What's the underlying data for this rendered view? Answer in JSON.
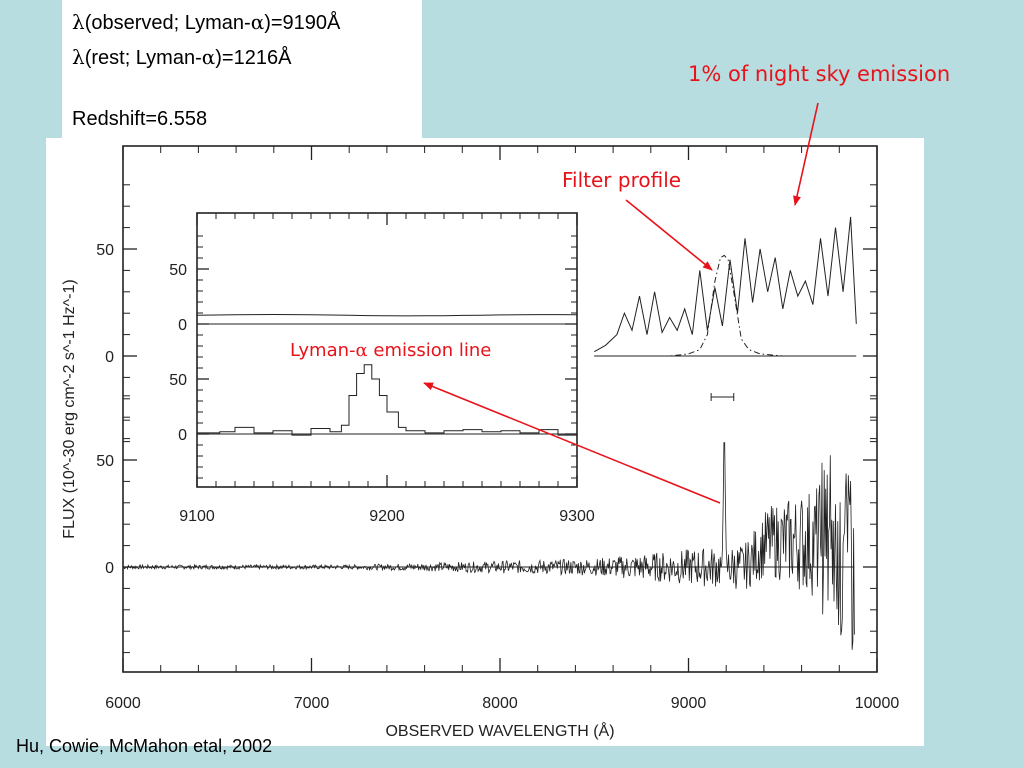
{
  "info": {
    "line1_pre": "(observed; Lyman-",
    "line1_post": ")=9190Å",
    "line2_pre": "(rest; Lyman-",
    "line2_post": ")=1216Å",
    "redshift": "Redshift=6.558",
    "lambda_symbol": "λ",
    "alpha_symbol": "α"
  },
  "annotations": {
    "night_sky": "1% of night sky emission",
    "filter": "Filter profile",
    "lyman_pre": "Lyman-",
    "lyman_post": " emission line"
  },
  "credit": "Hu, Cowie, McMahon  etal, 2002",
  "colors": {
    "background": "#b7dde1",
    "panel": "#ffffff",
    "annotation": "#e8131a",
    "ink": "#222222"
  },
  "chart_data": [
    {
      "type": "line",
      "xlabel": "OBSERVED WAVELENGTH (Å)",
      "ylabel": "FLUX (10^-30 erg cm^-2 s^-1 Hz^-1)",
      "xlim": [
        6000,
        10000
      ],
      "xticks": [
        6000,
        7000,
        8000,
        9000,
        10000
      ],
      "upper_panel": {
        "yticks": [
          0,
          50
        ],
        "series": [
          {
            "name": "night sky",
            "x": [
              8500,
              8560,
              8620,
              8660,
              8700,
              8740,
              8780,
              8820,
              8860,
              8900,
              8940,
              8980,
              9020,
              9060,
              9100,
              9140,
              9180,
              9220,
              9260,
              9300,
              9340,
              9380,
              9420,
              9460,
              9500,
              9540,
              9580,
              9620,
              9660,
              9700,
              9740,
              9780,
              9820,
              9860,
              9890
            ],
            "y": [
              2,
              5,
              10,
              20,
              12,
              28,
              10,
              30,
              11,
              18,
              12,
              22,
              10,
              40,
              12,
              32,
              14,
              45,
              20,
              55,
              25,
              50,
              30,
              46,
              22,
              40,
              28,
              35,
              24,
              55,
              28,
              60,
              30,
              65,
              15
            ]
          },
          {
            "name": "filter profile",
            "x": [
              8500,
              8900,
              9000,
              9060,
              9100,
              9140,
              9170,
              9190,
              9210,
              9240,
              9280,
              9320,
              9380,
              9500,
              9890
            ],
            "y": [
              0,
              0,
              1,
              3,
              10,
              35,
              46,
              47,
              45,
              30,
              8,
              3,
              1,
              0,
              0
            ]
          }
        ]
      },
      "lower_panel": {
        "yticks": [
          0,
          50
        ],
        "line_peak": {
          "x": 9190,
          "y": 63
        }
      }
    },
    {
      "type": "line",
      "title": "inset",
      "xlim": [
        9100,
        9300
      ],
      "xticks": [
        9100,
        9200,
        9300
      ],
      "upper_panel": {
        "yticks": [
          0,
          50
        ],
        "level": 8
      },
      "lower_panel": {
        "yticks": [
          0,
          50
        ],
        "x": [
          9100,
          9112,
          9120,
          9130,
          9140,
          9150,
          9160,
          9170,
          9176,
          9180,
          9184,
          9188,
          9192,
          9196,
          9200,
          9206,
          9210,
          9220,
          9230,
          9240,
          9250,
          9260,
          9270,
          9280,
          9290,
          9300
        ],
        "y": [
          1,
          2,
          6,
          1,
          3,
          -1,
          5,
          2,
          8,
          35,
          55,
          63,
          50,
          35,
          20,
          6,
          3,
          1,
          3,
          4,
          2,
          3,
          1,
          4,
          -1,
          1
        ]
      }
    }
  ]
}
